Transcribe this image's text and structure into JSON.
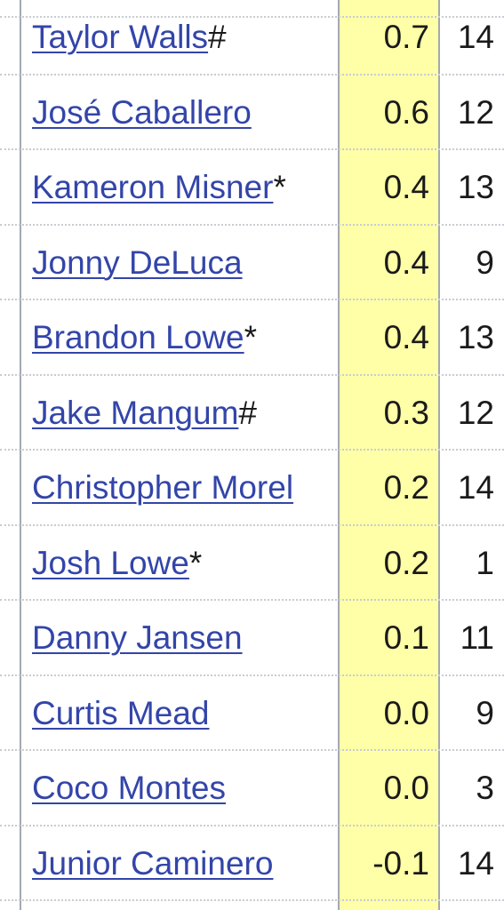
{
  "table": {
    "rows": [
      {
        "name": "Taylor Walls",
        "mark": "#",
        "war": "0.7",
        "g": "14"
      },
      {
        "name": "José Caballero",
        "mark": "",
        "war": "0.6",
        "g": "12"
      },
      {
        "name": "Kameron Misner",
        "mark": "*",
        "war": "0.4",
        "g": "13"
      },
      {
        "name": "Jonny DeLuca",
        "mark": "",
        "war": "0.4",
        "g": "9"
      },
      {
        "name": "Brandon Lowe",
        "mark": "*",
        "war": "0.4",
        "g": "13"
      },
      {
        "name": "Jake Mangum",
        "mark": "#",
        "war": "0.3",
        "g": "12"
      },
      {
        "name": "Christopher Morel",
        "mark": "",
        "war": "0.2",
        "g": "14"
      },
      {
        "name": "Josh Lowe",
        "mark": "*",
        "war": "0.2",
        "g": "1"
      },
      {
        "name": "Danny Jansen",
        "mark": "",
        "war": "0.1",
        "g": "11"
      },
      {
        "name": "Curtis Mead",
        "mark": "",
        "war": "0.0",
        "g": "9"
      },
      {
        "name": "Coco Montes",
        "mark": "",
        "war": "0.0",
        "g": "3"
      },
      {
        "name": "Junior Caminero",
        "mark": "",
        "war": "-0.1",
        "g": "14"
      }
    ]
  },
  "colors": {
    "link": "#3345a9",
    "highlight_column": "#ffffa8",
    "border": "#a2a9b1"
  }
}
